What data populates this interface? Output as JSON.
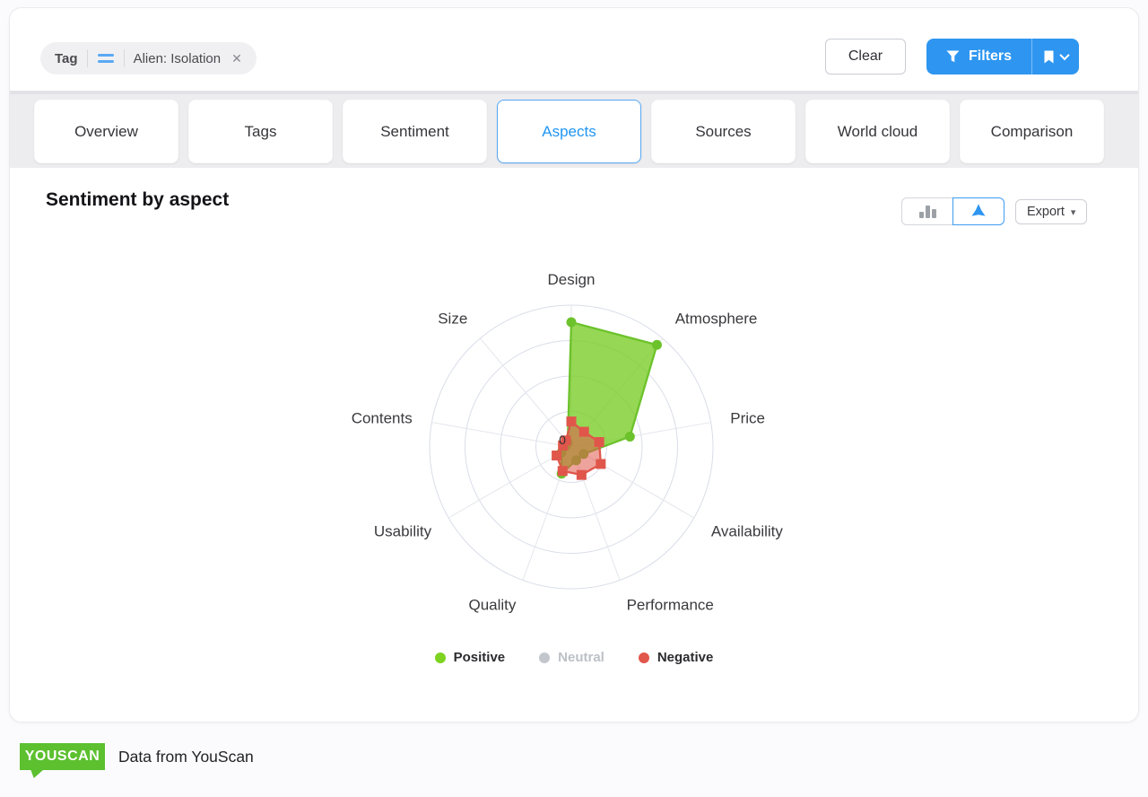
{
  "filter_bar": {
    "chip": {
      "type_label": "Tag",
      "operator_icon": "equals-icon",
      "value": "Alien: Isolation",
      "remove_icon": "close-icon"
    },
    "clear_button": "Clear",
    "filters_button": "Filters"
  },
  "tabs": [
    {
      "label": "Overview",
      "active": false
    },
    {
      "label": "Tags",
      "active": false
    },
    {
      "label": "Sentiment",
      "active": false
    },
    {
      "label": "Aspects",
      "active": true
    },
    {
      "label": "Sources",
      "active": false
    },
    {
      "label": "World cloud",
      "active": false
    },
    {
      "label": "Comparison",
      "active": false
    }
  ],
  "panel": {
    "title": "Sentiment by aspect",
    "view_toggle": [
      {
        "name": "bar-view",
        "icon": "bar-chart-icon",
        "active": false
      },
      {
        "name": "radar-view",
        "icon": "radar-chart-icon",
        "active": true
      }
    ],
    "export_button": "Export"
  },
  "chart_data": {
    "type": "radar",
    "title": "Sentiment by aspect",
    "categories": [
      "Design",
      "Atmosphere",
      "Price",
      "Availability",
      "Performance",
      "Quality",
      "Usability",
      "Contents",
      "Size"
    ],
    "series": [
      {
        "name": "Positive",
        "color": "#6CC22B",
        "fill": "rgba(124,205,42,0.8)",
        "marker": "circle",
        "visible": true,
        "values": [
          88,
          94,
          42,
          10,
          10,
          20,
          8,
          4,
          4
        ]
      },
      {
        "name": "Neutral",
        "color": "#C3C7CD",
        "fill": "rgba(195,199,205,0.5)",
        "marker": "circle",
        "visible": false,
        "values": []
      },
      {
        "name": "Negative",
        "color": "#E0564B",
        "fill": "rgba(226,87,76,0.55)",
        "marker": "square",
        "visible": true,
        "values": [
          18,
          14,
          20,
          24,
          21,
          18,
          12,
          6,
          6
        ]
      }
    ],
    "radial_axis": {
      "min_label": "0",
      "rings": 4,
      "max_percent": 100,
      "note": "values are % of outer ring; only 0 labeled at center"
    },
    "grid": {
      "ring_color": "#D9DDE8",
      "spoke_color": "#E4E6EC"
    },
    "legend_position": "bottom"
  },
  "legend": [
    {
      "label": "Positive",
      "color": "#7ED321",
      "muted": false
    },
    {
      "label": "Neutral",
      "color": "#C3C7CD",
      "muted": true
    },
    {
      "label": "Negative",
      "color": "#E2574C",
      "muted": false
    }
  ],
  "footer": {
    "logo": "YOUSCAN",
    "caption": "Data from YouScan"
  },
  "colors": {
    "accent_blue": "#2E96F0",
    "active_tab_text": "#2196F3",
    "logo_green": "#5CC02F"
  }
}
